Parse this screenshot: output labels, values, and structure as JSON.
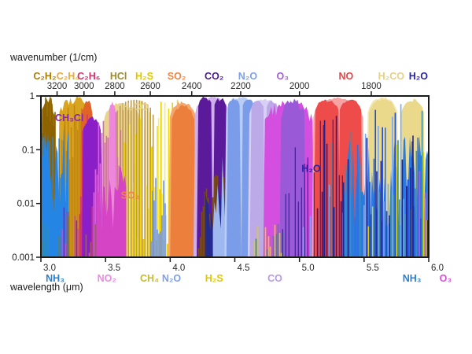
{
  "figure": {
    "top_axis_title": "wavenumber (1/cm)",
    "bottom_axis_title": "wavelength (μm)"
  },
  "chart_data": {
    "type": "area",
    "x_label_top": "wavenumber (1/cm)",
    "x_label_bottom": "wavelength (μm)",
    "x_range_um": [
      3.0,
      6.0
    ],
    "y_range": [
      0.001,
      1
    ],
    "y_scale": "log",
    "grid": false,
    "y_ticks": [
      "1",
      "0.1",
      "0.01",
      "0.001"
    ],
    "top_ticks_wavenumber": [
      3200,
      3000,
      2800,
      2600,
      2400,
      2200,
      2000,
      1800
    ],
    "bottom_ticks_um": [
      "3.0",
      "3.5",
      "4.0",
      "4.5",
      "5.0",
      "5.5",
      "6.0"
    ],
    "top_molecule_labels": [
      {
        "text": "C₂H₂",
        "x_um": 3.03,
        "color": "#b07c00"
      },
      {
        "text": "C₂H₄",
        "x_um": 3.21,
        "color": "#e8a93c"
      },
      {
        "text": "C₂H₆",
        "x_um": 3.37,
        "color": "#d6336c"
      },
      {
        "text": "HCl",
        "x_um": 3.6,
        "color": "#9c8a2a"
      },
      {
        "text": "H₂S",
        "x_um": 3.8,
        "color": "#e0c800"
      },
      {
        "text": "SO₂",
        "x_um": 4.05,
        "color": "#ef8443"
      },
      {
        "text": "CO₂",
        "x_um": 4.34,
        "color": "#4b1a8c"
      },
      {
        "text": "N₂O",
        "x_um": 4.6,
        "color": "#7f9fe6"
      },
      {
        "text": "O₃",
        "x_um": 4.87,
        "color": "#a55fd2"
      },
      {
        "text": "NO",
        "x_um": 5.36,
        "color": "#e0474b"
      },
      {
        "text": "H₂CO",
        "x_um": 5.71,
        "color": "#e6d187"
      },
      {
        "text": "H₂O",
        "x_um": 5.92,
        "color": "#2a23a8"
      }
    ],
    "bottom_molecule_labels": [
      {
        "text": "NH₃",
        "x_um": 3.11,
        "color": "#2a7fd4"
      },
      {
        "text": "NO₂",
        "x_um": 3.51,
        "color": "#ea8ae0"
      },
      {
        "text": "CH₄",
        "x_um": 3.84,
        "color": "#c5bb2a"
      },
      {
        "text": "N₂O",
        "x_um": 4.01,
        "color": "#7f9fe6"
      },
      {
        "text": "H₂S",
        "x_um": 4.34,
        "color": "#e0c800"
      },
      {
        "text": "CO",
        "x_um": 4.81,
        "color": "#b89ae0"
      },
      {
        "text": "NH₃",
        "x_um": 5.87,
        "color": "#2a7fd4"
      },
      {
        "text": "O₃",
        "x_um": 6.13,
        "color": "#d84fd8"
      }
    ],
    "annotations": [
      {
        "text": "CH₃Cl",
        "x_um": 3.22,
        "value": 0.39,
        "color": "#8a1fc8"
      },
      {
        "text": "H₂CO",
        "x_um": 3.73,
        "value": 0.62,
        "color": "#e6d187"
      },
      {
        "text": "SO₂",
        "x_um": 3.69,
        "value": 0.014,
        "color": "#ef8443"
      },
      {
        "text": "H₂O",
        "x_um": 5.09,
        "value": 0.044,
        "color": "#2a23a8"
      }
    ],
    "bands": [
      {
        "molecule": "H2CO",
        "style": "dome",
        "color": "#e8d490",
        "x0": 3.47,
        "x1": 3.79,
        "peak": 0.8,
        "jag": 0.25
      },
      {
        "molecule": "H2S",
        "style": "spikes",
        "colors": [
          "#f0dc00",
          "#f6ec66",
          "#e8d000"
        ],
        "x0": 3.56,
        "x1": 4.3,
        "peak": 0.92,
        "depth": 2.8,
        "step": 1.6
      },
      {
        "molecule": "HCl",
        "style": "comb",
        "color": "#c09a50",
        "x0": 3.57,
        "x1": 3.88,
        "peak": 0.85,
        "space": 3.5
      },
      {
        "molecule": "C2H4",
        "style": "dome",
        "color": "#d9a520",
        "x0": 3.13,
        "x1": 3.4,
        "peak": 1.0,
        "jag": 0.3
      },
      {
        "molecule": "C2H4",
        "style": "spikes",
        "color": "#c3890e",
        "x0": 3.15,
        "x1": 3.38,
        "peak": 0.9,
        "depth": 1.2,
        "step": 2
      },
      {
        "molecule": "C2H2",
        "style": "dome",
        "color": "#9a6d00",
        "x0": 2.995,
        "x1": 3.12,
        "peak": 1.0,
        "jag": 0.45
      },
      {
        "molecule": "C2H2",
        "style": "spikes",
        "color": "#8a6000",
        "x0": 3.0,
        "x1": 3.115,
        "peak": 1.0,
        "depth": 1.0,
        "step": 2
      },
      {
        "molecule": "C2H6",
        "style": "dome",
        "color": "#e06428",
        "x0": 3.3,
        "x1": 3.41,
        "peak": 0.88,
        "jag": 0.3
      },
      {
        "molecule": "C2H6",
        "style": "spikes",
        "color": "#d6336c",
        "x0": 3.31,
        "x1": 3.46,
        "peak": 0.5,
        "depth": 1.5,
        "step": 2
      },
      {
        "molecule": "CH3Cl",
        "style": "dome",
        "color": "#8a1fc8",
        "x0": 3.315,
        "x1": 3.475,
        "peak": 0.42,
        "jag": 0.2
      },
      {
        "molecule": "NO2",
        "style": "spikes",
        "color": "#e060d0",
        "x0": 3.41,
        "x1": 3.62,
        "peak": 0.85,
        "depth": 1.8,
        "step": 2
      },
      {
        "molecule": "NO2",
        "style": "dome",
        "color": "#ee86de",
        "x0": 3.52,
        "x1": 3.585,
        "peak": 0.8,
        "jag": 0.15
      },
      {
        "molecule": "N2O",
        "style": "spikes",
        "color": "#6f94e8",
        "x0": 3.84,
        "x1": 3.97,
        "peak": 0.035,
        "depth": 1.2,
        "step": 2
      },
      {
        "molecule": "NH3",
        "style": "fill",
        "color": "#2585e5",
        "x0": 2.995,
        "x1": 3.215,
        "level": 0.012,
        "jag": 2
      },
      {
        "molecule": "NH3",
        "style": "spikes",
        "color": "#2585e5",
        "x0": 2.995,
        "x1": 3.225,
        "peak": 0.3,
        "depth": 1.6,
        "step": 2
      },
      {
        "molecule": "NH3",
        "style": "spikes",
        "color": "#2f8f9f",
        "x0": 2.995,
        "x1": 3.06,
        "peak": 0.006,
        "depth": 0.8,
        "step": 2
      },
      {
        "molecule": "mixed",
        "style": "spikes",
        "colors": [
          "#8a1fc8",
          "#d444c4",
          "#d6336c",
          "#8a7a00"
        ],
        "x0": 3.13,
        "x1": 3.62,
        "peak": 0.012,
        "depth": 1.4,
        "step": 2
      },
      {
        "molecule": "NO2",
        "style": "fill",
        "color": "#d444c4",
        "x0": 3.43,
        "x1": 3.66,
        "level": 0.0045,
        "jag": 1.5
      },
      {
        "molecule": "SO2",
        "style": "dome",
        "color": "#f5a86e",
        "x0": 3.985,
        "x1": 4.215,
        "peak": 0.82,
        "jag": 0.15
      },
      {
        "molecule": "SO2",
        "style": "dome",
        "color": "#ec7f3b",
        "x0": 4.0,
        "x1": 4.2,
        "peak": 0.72,
        "jag": 0.2
      },
      {
        "molecule": "CO2",
        "style": "dome",
        "color": "#cfb0ea",
        "x0": 4.18,
        "x1": 4.47,
        "peak": 1.0,
        "jag": 0.1
      },
      {
        "molecule": "CO2",
        "style": "dome",
        "color": "#5a1a9a",
        "x0": 4.205,
        "x1": 4.33,
        "peak": 1.0,
        "jag": 0.18,
        "shape": 0.2
      },
      {
        "molecule": "CO2",
        "style": "dome",
        "color": "#5a1a9a",
        "x0": 4.33,
        "x1": 4.445,
        "peak": 0.95,
        "jag": 0.18,
        "shape": 0.2
      },
      {
        "molecule": "CO2",
        "style": "spikes",
        "color": "#7a4a20",
        "x0": 4.22,
        "x1": 4.45,
        "peak": 0.06,
        "depth": 1.2,
        "step": 2
      },
      {
        "molecule": "CO2",
        "style": "fill",
        "color": "#232a8f",
        "x0": 4.27,
        "x1": 4.4,
        "level": 0.0035,
        "jag": 1.2
      },
      {
        "molecule": "N2O",
        "style": "fill",
        "color": "#9fb8f0",
        "x0": 4.33,
        "x1": 4.74,
        "level": 0.006,
        "jag": 1.5
      },
      {
        "molecule": "N2O",
        "style": "dome",
        "color": "#b9cdf5",
        "x0": 4.42,
        "x1": 4.675,
        "peak": 0.97,
        "jag": 0.08
      },
      {
        "molecule": "N2O",
        "style": "dome",
        "color": "#7b9ce8",
        "x0": 4.435,
        "x1": 4.55,
        "peak": 0.94,
        "jag": 0.12,
        "shape": 0.25
      },
      {
        "molecule": "N2O",
        "style": "dome",
        "color": "#7b9ce8",
        "x0": 4.55,
        "x1": 4.66,
        "peak": 0.92,
        "jag": 0.12,
        "shape": 0.25
      },
      {
        "molecule": "CO",
        "style": "dome",
        "color": "#d9cef5",
        "x0": 4.6,
        "x1": 4.86,
        "peak": 0.9,
        "jag": 0.08
      },
      {
        "molecule": "CO",
        "style": "dome",
        "color": "#bcaae8",
        "x0": 4.615,
        "x1": 4.735,
        "peak": 0.86,
        "jag": 0.12,
        "shape": 0.25
      },
      {
        "molecule": "CO",
        "style": "dome",
        "color": "#bcaae8",
        "x0": 4.735,
        "x1": 4.845,
        "peak": 0.84,
        "jag": 0.12,
        "shape": 0.25
      },
      {
        "molecule": "O3",
        "style": "dome",
        "color": "#d44fe0",
        "x0": 4.72,
        "x1": 5.115,
        "peak": 0.88,
        "jag": 0.45
      },
      {
        "molecule": "O3",
        "style": "dome",
        "color": "#9a5ad8",
        "x0": 4.845,
        "x1": 5.05,
        "peak": 0.92,
        "jag": 0.3
      },
      {
        "molecule": "mixed",
        "style": "spikes",
        "colors": [
          "#2f8f9f",
          "#ddd000"
        ],
        "x0": 4.64,
        "x1": 4.9,
        "peak": 0.005,
        "depth": 1.0,
        "step": 2
      },
      {
        "molecule": "NO",
        "style": "dome",
        "color": "#f8a3a3",
        "x0": 5.095,
        "x1": 5.505,
        "peak": 0.95,
        "jag": 0.08
      },
      {
        "molecule": "NO",
        "style": "dome",
        "color": "#ee4b4b",
        "x0": 5.11,
        "x1": 5.315,
        "peak": 0.88,
        "jag": 0.12,
        "shape": 0.25
      },
      {
        "molecule": "NO",
        "style": "dome",
        "color": "#ee4b4b",
        "x0": 5.3,
        "x1": 5.49,
        "peak": 0.9,
        "jag": 0.12,
        "shape": 0.25
      },
      {
        "molecule": "H2O",
        "style": "spikes",
        "color": "#2a2a9a",
        "x0": 4.87,
        "x1": 5.36,
        "peak": 0.45,
        "depth": 1.6,
        "step": 4,
        "sparse": 0.45,
        "w": 1.2
      },
      {
        "molecule": "H2CO",
        "style": "dome",
        "color": "#f2e7b0",
        "x0": 5.515,
        "x1": 5.77,
        "peak": 0.97,
        "jag": 0.08
      },
      {
        "molecule": "H2CO",
        "style": "dome",
        "color": "#ead98b",
        "x0": 5.525,
        "x1": 5.765,
        "peak": 0.93,
        "jag": 0.12
      },
      {
        "molecule": "H2CO",
        "style": "dome",
        "color": "#ead98b",
        "x0": 5.77,
        "x1": 5.975,
        "peak": 0.9,
        "jag": 0.15
      },
      {
        "molecule": "H2O",
        "style": "fill",
        "color": "#2b7ae0",
        "x0": 5.33,
        "x1": 6.0,
        "level": 0.01,
        "jag": 1.8
      },
      {
        "molecule": "H2O-NH3",
        "style": "spikes",
        "colors": [
          "#2f6fe0",
          "#1f4fd0",
          "#3a93a8",
          "#23238f",
          "#7aa7f0"
        ],
        "x0": 5.03,
        "x1": 5.52,
        "peak": 0.5,
        "depth": 2.0,
        "step": 3,
        "sparse": 0.5
      },
      {
        "molecule": "H2O-NH3",
        "style": "spikes",
        "colors": [
          "#2f6fe0",
          "#1f4fd0",
          "#3a93a8",
          "#23238f",
          "#7aa7f0",
          "#ddd000"
        ],
        "x0": 5.5,
        "x1": 5.995,
        "peak": 0.92,
        "depth": 2.2,
        "step": 1.8
      },
      {
        "molecule": "H2O",
        "style": "spikes",
        "color": "#23238f",
        "x0": 5.86,
        "x1": 5.99,
        "peak": 1.0,
        "depth": 0.9,
        "step": 3,
        "sparse": 0.4
      },
      {
        "molecule": "O3",
        "style": "spikes",
        "color": "#e040e0",
        "x0": 5.88,
        "x1": 5.99,
        "peak": 0.22,
        "depth": 1.0,
        "step": 4,
        "sparse": 0.5
      }
    ]
  }
}
